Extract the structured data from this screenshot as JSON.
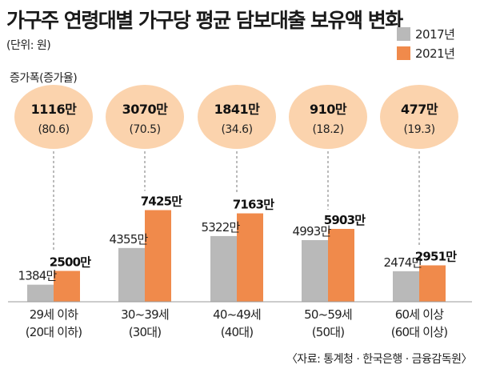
{
  "title": "가구주 연령대별 가구당 평균 담보대출 보유액 변화",
  "unit": "(단위: 원)",
  "increase_label": "증가폭(증가율)",
  "legend": [
    {
      "label": "2017년",
      "color": "#b9b9b9"
    },
    {
      "label": "2021년",
      "color": "#f08a4b"
    }
  ],
  "source": "〈자료: 통계청 · 한국은행 · 금융감독원〉",
  "bubble_color": "#fbd3ad",
  "chart_data": {
    "type": "bar",
    "title": "가구주 연령대별 가구당 평균 담보대출 보유액 변화",
    "unit": "만원",
    "categories": [
      {
        "line1": "29세 이하",
        "line2": "(20대 이하)"
      },
      {
        "line1": "30~39세",
        "line2": "(30대)"
      },
      {
        "line1": "40~49세",
        "line2": "(40대)"
      },
      {
        "line1": "50~59세",
        "line2": "(50대)"
      },
      {
        "line1": "60세 이상",
        "line2": "(60대 이상)"
      }
    ],
    "series": [
      {
        "name": "2017년",
        "values": [
          1384,
          4355,
          5322,
          4993,
          2474
        ]
      },
      {
        "name": "2021년",
        "values": [
          2500,
          7425,
          7163,
          5903,
          2951
        ]
      }
    ],
    "labels_2017": [
      "1384만",
      "4355만",
      "5322만",
      "4993만",
      "2474만"
    ],
    "labels_2021": [
      "2500만",
      "7425만",
      "7163만",
      "5903만",
      "2951만"
    ],
    "increase": [
      "1116만",
      "3070만",
      "1841만",
      "910만",
      "477만"
    ],
    "increase_rate": [
      "(80.6)",
      "(70.5)",
      "(34.6)",
      "(18.2)",
      "(19.3)"
    ],
    "ylim": [
      0,
      8000
    ]
  }
}
